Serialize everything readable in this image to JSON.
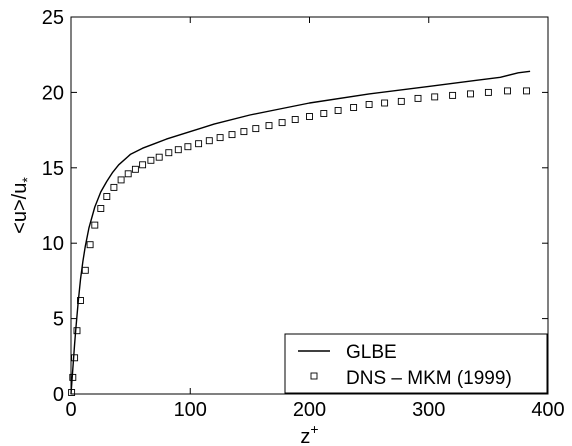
{
  "chart_data": {
    "type": "line",
    "title": "",
    "xlabel": "z",
    "xlabel_sup": "+",
    "ylabel": "<u>/u",
    "ylabel_sub": "*",
    "xlim": [
      0,
      400
    ],
    "ylim": [
      0,
      25
    ],
    "xticks": [
      "0",
      "100",
      "200",
      "300",
      "400"
    ],
    "yticks": [
      "0",
      "5",
      "10",
      "15",
      "20",
      "25"
    ],
    "grid": false,
    "legend_position": "bottom-right",
    "series": [
      {
        "name": "GLBE",
        "style": "solid-line",
        "color": "#000000",
        "x": [
          0,
          1,
          2,
          3,
          4,
          5,
          6,
          8,
          10,
          12,
          15,
          20,
          25,
          30,
          35,
          40,
          50,
          60,
          70,
          80,
          100,
          120,
          150,
          175,
          200,
          250,
          300,
          340,
          360,
          375,
          385
        ],
        "y": [
          0,
          1.1,
          2.2,
          3.3,
          4.3,
          5.2,
          6.1,
          7.6,
          8.8,
          9.8,
          11.0,
          12.4,
          13.4,
          14.1,
          14.7,
          15.2,
          15.9,
          16.3,
          16.6,
          16.9,
          17.4,
          17.9,
          18.5,
          18.9,
          19.3,
          19.9,
          20.4,
          20.8,
          21.0,
          21.3,
          21.4
        ]
      },
      {
        "name": "DNS – MKM (1999)",
        "style": "square-markers",
        "color": "#000000",
        "x": [
          0.5,
          1.5,
          3,
          5,
          8,
          12,
          16,
          20,
          25,
          30,
          36,
          42,
          48,
          54,
          60,
          67,
          74,
          82,
          90,
          98,
          107,
          116,
          125,
          135,
          145,
          155,
          166,
          177,
          188,
          200,
          212,
          224,
          237,
          250,
          263,
          277,
          291,
          305,
          320,
          335,
          350,
          366,
          382
        ],
        "y": [
          0.1,
          1.1,
          2.4,
          4.2,
          6.2,
          8.2,
          9.9,
          11.2,
          12.3,
          13.1,
          13.7,
          14.2,
          14.6,
          14.9,
          15.2,
          15.5,
          15.7,
          16.0,
          16.2,
          16.4,
          16.6,
          16.8,
          17.0,
          17.2,
          17.4,
          17.6,
          17.8,
          18.0,
          18.2,
          18.4,
          18.6,
          18.8,
          19.0,
          19.2,
          19.3,
          19.4,
          19.6,
          19.7,
          19.8,
          19.9,
          20.0,
          20.1,
          20.1
        ]
      }
    ]
  }
}
